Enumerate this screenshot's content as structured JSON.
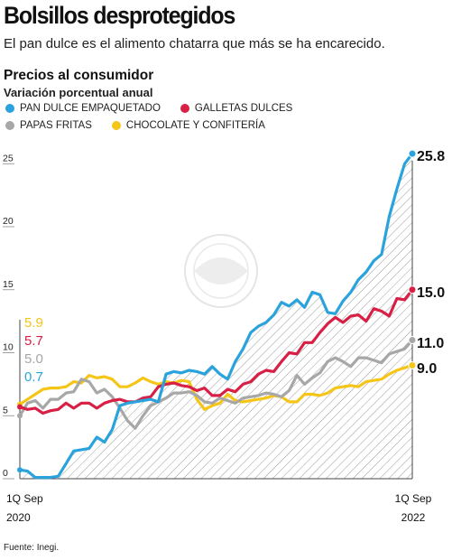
{
  "header": {
    "title": "Bolsillos desprotegidos",
    "subtitle": "El pan dulce es el alimento chatarra que más se ha encarecido.",
    "section_title": "Precios al consumidor",
    "section_subtitle": "Variación porcentual anual"
  },
  "legend": [
    {
      "label": "PAN DULCE EMPAQUETADO",
      "color": "#2aa3dc"
    },
    {
      "label": "GALLETAS DULCES",
      "color": "#d81f45"
    },
    {
      "label": "PAPAS FRITAS",
      "color": "#a7a7a7"
    },
    {
      "label": "CHOCOLATE Y CONFITERÍA",
      "color": "#f5c518"
    }
  ],
  "source": "Fuente: Inegi.",
  "chart_data": {
    "type": "line",
    "x_labels": [
      {
        "line1": "1Q Sep",
        "line2": "2020"
      },
      {
        "line1": "1Q Sep",
        "line2": "2022"
      }
    ],
    "ylim": [
      0,
      27
    ],
    "y_ticks": [
      "0",
      "5",
      "10",
      "15",
      "20",
      "25"
    ],
    "grid": false,
    "start_labels": [
      "5.9",
      "5.7",
      "5.0",
      "0.7"
    ],
    "end_labels": [
      "25.8",
      "15.0",
      "11.0",
      "9.0"
    ],
    "series": [
      {
        "name": "PAN DULCE EMPAQUETADO",
        "color": "#2aa3dc",
        "values": [
          0.7,
          0.6,
          0.1,
          0.1,
          0.1,
          0.2,
          1.2,
          2.2,
          2.3,
          2.4,
          3.3,
          2.9,
          3.9,
          5.8,
          6.0,
          6.1,
          6.2,
          6.3,
          6.1,
          8.3,
          8.5,
          8.4,
          8.6,
          8.5,
          8.3,
          8.9,
          8.3,
          7.9,
          9.3,
          10.3,
          11.6,
          12.1,
          12.4,
          13.0,
          14.0,
          13.7,
          14.2,
          13.6,
          14.8,
          14.6,
          13.2,
          13.1,
          14.1,
          14.8,
          15.8,
          16.4,
          17.3,
          17.8,
          20.8,
          23.0,
          25.0,
          25.8
        ]
      },
      {
        "name": "GALLETAS DULCES",
        "color": "#d81f45",
        "values": [
          5.7,
          5.5,
          5.6,
          5.2,
          5.4,
          5.5,
          6.0,
          5.6,
          6.0,
          6.0,
          5.6,
          6.0,
          6.2,
          6.3,
          6.1,
          6.1,
          6.4,
          6.5,
          7.3,
          7.5,
          7.6,
          7.4,
          7.3,
          7.0,
          7.2,
          6.6,
          6.6,
          7.1,
          6.9,
          7.5,
          7.7,
          8.3,
          8.6,
          8.5,
          9.3,
          10.0,
          9.9,
          10.8,
          10.8,
          11.6,
          12.3,
          12.8,
          12.4,
          12.9,
          13.0,
          12.5,
          13.5,
          13.3,
          12.9,
          14.3,
          14.2,
          15.0
        ]
      },
      {
        "name": "PAPAS FRITAS",
        "color": "#a7a7a7",
        "values": [
          5.0,
          6.0,
          6.2,
          5.6,
          6.3,
          6.3,
          6.8,
          6.9,
          7.9,
          7.7,
          6.8,
          7.1,
          6.5,
          5.6,
          4.6,
          4.0,
          5.0,
          5.8,
          6.1,
          6.4,
          6.8,
          6.8,
          6.9,
          6.6,
          6.1,
          6.0,
          6.4,
          6.2,
          6.0,
          6.4,
          6.5,
          6.6,
          6.8,
          6.7,
          6.5,
          7.0,
          8.2,
          7.5,
          8.0,
          8.4,
          9.3,
          9.6,
          9.3,
          8.9,
          9.6,
          9.6,
          9.4,
          9.2,
          9.9,
          10.1,
          10.3,
          11.0
        ]
      },
      {
        "name": "CHOCOLATE Y CONFITERÍA",
        "color": "#f5c518",
        "values": [
          5.9,
          6.3,
          6.7,
          7.1,
          7.2,
          7.2,
          7.3,
          7.7,
          7.6,
          8.2,
          8.0,
          8.1,
          7.9,
          7.3,
          7.3,
          7.6,
          8.0,
          7.7,
          7.5,
          7.7,
          7.6,
          7.8,
          7.7,
          6.3,
          5.5,
          5.8,
          6.0,
          6.7,
          6.2,
          6.1,
          6.2,
          6.3,
          6.4,
          6.6,
          6.5,
          6.1,
          6.1,
          6.7,
          6.7,
          6.6,
          6.8,
          7.2,
          7.3,
          7.4,
          7.3,
          7.7,
          7.8,
          7.9,
          8.3,
          8.6,
          8.8,
          9.0
        ]
      }
    ]
  }
}
